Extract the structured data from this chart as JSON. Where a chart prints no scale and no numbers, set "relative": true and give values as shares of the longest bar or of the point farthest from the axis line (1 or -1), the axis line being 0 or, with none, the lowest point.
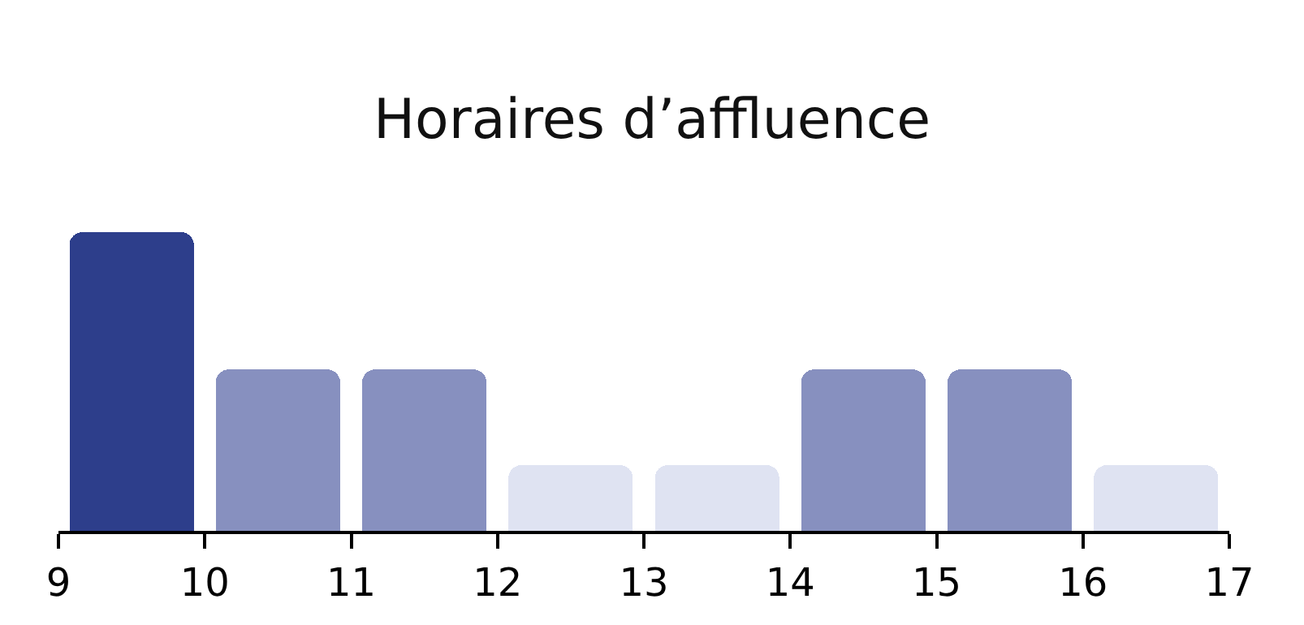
{
  "chart_data": {
    "type": "bar",
    "title": "Horaires d’affluence",
    "relative": true,
    "x": [
      9.5,
      10.5,
      11.5,
      12.5,
      13.5,
      14.5,
      15.5,
      16.5
    ],
    "values": [
      1,
      0.54,
      0.54,
      0.22,
      0.22,
      0.54,
      0.54,
      0.22
    ],
    "colors": [
      "#2d3e8b",
      "#8790bf",
      "#8790bf",
      "#dfe3f2",
      "#dfe3f2",
      "#8790bf",
      "#8790bf",
      "#dfe3f2"
    ],
    "xlim": [
      9,
      17
    ],
    "xticks": [
      9,
      10,
      11,
      12,
      13,
      14,
      15,
      16,
      17
    ]
  }
}
